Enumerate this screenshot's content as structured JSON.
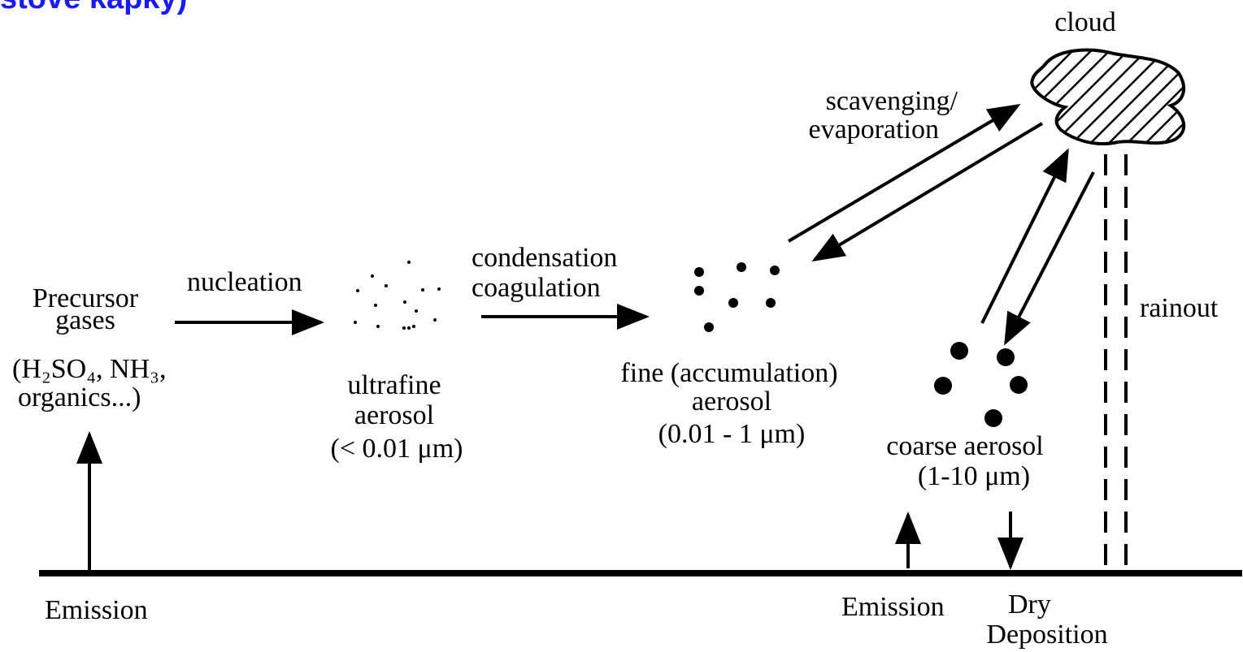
{
  "header_fragment": "stové kapky)",
  "labels": {
    "cloud": "cloud",
    "scavenging": [
      "scavenging/",
      "evaporation"
    ],
    "condensation": [
      "condensation",
      "coagulation"
    ],
    "nucleation": "nucleation",
    "precursor": [
      "Precursor",
      "gases",
      "(H₂SO₄, NH₃,",
      "organics...)"
    ],
    "ultrafine": [
      "ultrafine",
      "aerosol",
      "(< 0.01 μm)"
    ],
    "fine": [
      "fine (accumulation)",
      "aerosol",
      "(0.01 - 1 μm)"
    ],
    "coarse": [
      "coarse aerosol",
      "(1-10 μm)"
    ],
    "rainout": "rainout",
    "emission_left": "Emission",
    "emission_right": "Emission",
    "dry_deposition": [
      "Dry",
      "Deposition"
    ]
  }
}
